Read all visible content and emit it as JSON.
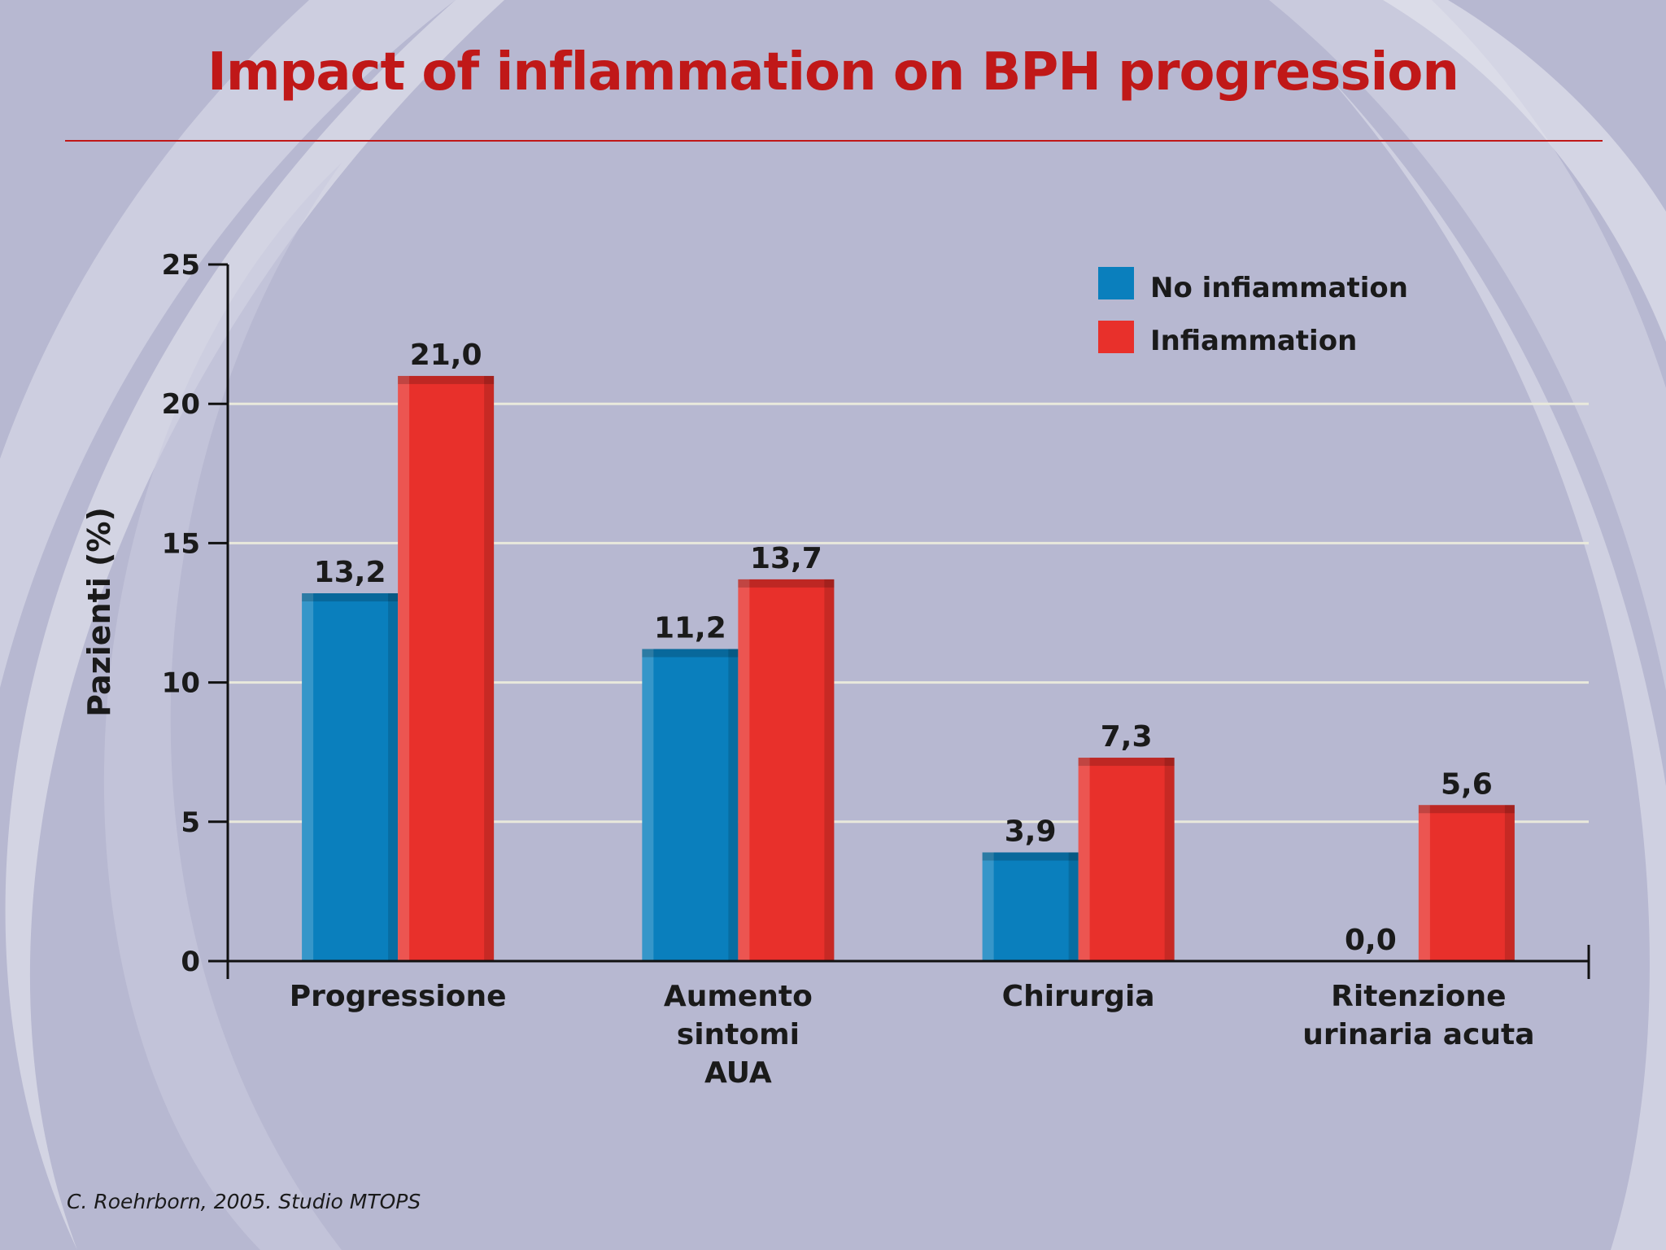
{
  "slide": {
    "title": "Impact of inflammation on BPH progression",
    "citation": "C. Roehrborn, 2005. Studio MTOPS",
    "colors": {
      "title": "#c01818",
      "background": "#b7b8d1"
    }
  },
  "chart_data": {
    "type": "bar",
    "categories": [
      [
        "Progressione"
      ],
      [
        "Aumento",
        "sintomi",
        "AUA"
      ],
      [
        "Chirurgia"
      ],
      [
        "Ritenzione",
        "urinaria acuta"
      ]
    ],
    "series": [
      {
        "name": "No infiammation",
        "color": "#0a7fbd",
        "values": [
          13.2,
          11.2,
          3.9,
          0.0
        ],
        "labels": [
          "13,2",
          "11,2",
          "3,9",
          "0,0"
        ]
      },
      {
        "name": "Infiammation",
        "color": "#e8302b",
        "values": [
          21.0,
          13.7,
          7.3,
          5.6
        ],
        "labels": [
          "21,0",
          "13,7",
          "7,3",
          "5,6"
        ]
      }
    ],
    "ylabel": "Pazienti (%)",
    "xlabel": "",
    "ylim": [
      0,
      25
    ],
    "yticks": [
      0,
      5,
      10,
      15,
      20,
      25
    ],
    "grid": true,
    "legend_position": "top-right"
  }
}
